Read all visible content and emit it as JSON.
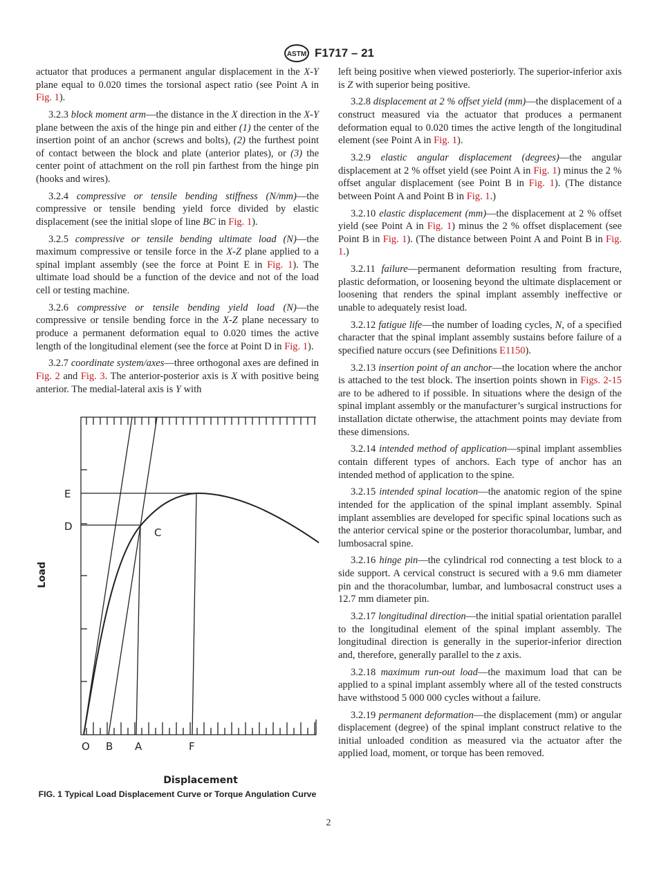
{
  "header": {
    "logo": "ASTM",
    "designation": "F1717 – 21"
  },
  "left_column": [
    {
      "cont": true,
      "segs": [
        [
          "t",
          "actuator that produces a permanent angular displacement in the "
        ],
        [
          "i",
          "X-Y"
        ],
        [
          "t",
          " plane equal to 0.020 times the torsional aspect ratio (see Point A in "
        ],
        [
          "a",
          "Fig. 1"
        ],
        [
          "t",
          ")."
        ]
      ]
    },
    {
      "segs": [
        [
          "t",
          "3.2.3 "
        ],
        [
          "i",
          "block moment arm"
        ],
        [
          "t",
          "—the distance in the "
        ],
        [
          "i",
          "X"
        ],
        [
          "t",
          " direction in the "
        ],
        [
          "i",
          "X-Y"
        ],
        [
          "t",
          " plane between the axis of the hinge pin and either "
        ],
        [
          "i",
          "(1)"
        ],
        [
          "t",
          " the center of the insertion point of an anchor (screws and bolts), "
        ],
        [
          "i",
          "(2)"
        ],
        [
          "t",
          " the furthest point of contact between the block and plate (anterior plates), or "
        ],
        [
          "i",
          "(3)"
        ],
        [
          "t",
          " the center point of attachment on the roll pin farthest from the hinge pin (hooks and wires)."
        ]
      ]
    },
    {
      "segs": [
        [
          "t",
          "3.2.4 "
        ],
        [
          "i",
          "compressive or tensile bending stiffness (N/mm)"
        ],
        [
          "t",
          "—the compressive or tensile bending yield force divided by elastic displacement (see the initial slope of line "
        ],
        [
          "i",
          "BC"
        ],
        [
          "t",
          " in "
        ],
        [
          "a",
          "Fig. 1"
        ],
        [
          "t",
          ")."
        ]
      ]
    },
    {
      "segs": [
        [
          "t",
          "3.2.5 "
        ],
        [
          "i",
          "compressive or tensile bending ultimate load (N)"
        ],
        [
          "t",
          "—the maximum compressive or tensile force in the "
        ],
        [
          "i",
          "X-Z"
        ],
        [
          "t",
          " plane applied to a spinal implant assembly (see the force at Point E in "
        ],
        [
          "a",
          "Fig. 1"
        ],
        [
          "t",
          "). The ultimate load should be a function of the device and not of the load cell or testing machine."
        ]
      ]
    },
    {
      "segs": [
        [
          "t",
          "3.2.6 "
        ],
        [
          "i",
          "compressive or tensile bending yield load (N)"
        ],
        [
          "t",
          "—the compressive or tensile bending force in the "
        ],
        [
          "i",
          "X-Z"
        ],
        [
          "t",
          " plane neces­sary to produce a permanent deformation equal to 0.020 times the active length of the longitudinal element (see the force at Point D in "
        ],
        [
          "a",
          "Fig. 1"
        ],
        [
          "t",
          ")."
        ]
      ]
    },
    {
      "segs": [
        [
          "t",
          "3.2.7 "
        ],
        [
          "i",
          "coordinate system/axes"
        ],
        [
          "t",
          "—three orthogonal axes are defined in "
        ],
        [
          "a",
          "Fig. 2"
        ],
        [
          "t",
          " and "
        ],
        [
          "a",
          "Fig. 3"
        ],
        [
          "t",
          ". The anterior-posterior axis is "
        ],
        [
          "i",
          "X"
        ],
        [
          "t",
          " with positive being anterior. The medial-lateral axis is "
        ],
        [
          "i",
          "Y"
        ],
        [
          "t",
          " with"
        ]
      ]
    }
  ],
  "right_column": [
    {
      "cont": true,
      "segs": [
        [
          "t",
          "left being positive when viewed posteriorly. The superior-inferior axis is "
        ],
        [
          "i",
          "Z"
        ],
        [
          "t",
          " with superior being positive."
        ]
      ]
    },
    {
      "segs": [
        [
          "t",
          "3.2.8 "
        ],
        [
          "i",
          "displacement at 2 % offset yield (mm)"
        ],
        [
          "t",
          "—the displace­ment of a construct measured via the actuator that produces a permanent deformation equal to 0.020 times the active length of the longitudinal element (see Point A in "
        ],
        [
          "a",
          "Fig. 1"
        ],
        [
          "t",
          ")."
        ]
      ]
    },
    {
      "segs": [
        [
          "t",
          "3.2.9 "
        ],
        [
          "i",
          "elastic angular displacement (degrees)"
        ],
        [
          "t",
          "—the angular displacement at 2 % offset yield (see Point A in "
        ],
        [
          "a",
          "Fig. 1"
        ],
        [
          "t",
          ") minus the 2 % offset angular displacement (see Point B in "
        ],
        [
          "a",
          "Fig. 1"
        ],
        [
          "t",
          "). (The distance between Point A and Point B in "
        ],
        [
          "a",
          "Fig. 1"
        ],
        [
          "t",
          ".)"
        ]
      ]
    },
    {
      "segs": [
        [
          "t",
          "3.2.10 "
        ],
        [
          "i",
          "elastic displacement (mm)"
        ],
        [
          "t",
          "—the displacement at 2 % offset yield (see Point A in "
        ],
        [
          "a",
          "Fig. 1"
        ],
        [
          "t",
          ") minus the 2 % offset displacement (see Point B in "
        ],
        [
          "a",
          "Fig. 1"
        ],
        [
          "t",
          "). (The distance between Point A and Point B in "
        ],
        [
          "a",
          "Fig. 1"
        ],
        [
          "t",
          ".)"
        ]
      ]
    },
    {
      "segs": [
        [
          "t",
          "3.2.11 "
        ],
        [
          "i",
          "failure"
        ],
        [
          "t",
          "—permanent deformation resulting from fracture, plastic deformation, or loosening beyond the ultimate displacement or loosening that renders the spinal implant assembly ineffective or unable to adequately resist load."
        ]
      ]
    },
    {
      "segs": [
        [
          "t",
          "3.2.12 "
        ],
        [
          "i",
          "fatigue life"
        ],
        [
          "t",
          "—the number of loading cycles, "
        ],
        [
          "i",
          "N"
        ],
        [
          "t",
          ", of a specified character that the spinal implant assembly sustains before failure of a specified nature occurs (see Definitions "
        ],
        [
          "a",
          "E1150"
        ],
        [
          "t",
          ")."
        ]
      ]
    },
    {
      "segs": [
        [
          "t",
          "3.2.13 "
        ],
        [
          "i",
          "insertion point of an anchor"
        ],
        [
          "t",
          "—the location where the anchor is attached to the test block. The insertion points shown in "
        ],
        [
          "a",
          "Figs. 2-15"
        ],
        [
          "t",
          " are to be adhered to if possible. In situations where the design of the spinal implant assembly or the manufacturer’s surgical instructions for installation dictate otherwise, the attachment points may deviate from these dimensions."
        ]
      ]
    },
    {
      "segs": [
        [
          "t",
          "3.2.14 "
        ],
        [
          "i",
          "intended method of application"
        ],
        [
          "t",
          "—spinal implant as­semblies contain different types of anchors. Each type of anchor has an intended method of application to the spine."
        ]
      ]
    },
    {
      "segs": [
        [
          "t",
          "3.2.15 "
        ],
        [
          "i",
          "intended spinal location"
        ],
        [
          "t",
          "—the anatomic region of the spine intended for the application of the spinal implant assembly. Spinal implant assemblies are developed for specific spinal locations such as the anterior cervical spine or the posterior thoracolumbar, lumbar, and lumbosacral spine."
        ]
      ]
    },
    {
      "segs": [
        [
          "t",
          "3.2.16 "
        ],
        [
          "i",
          "hinge pin"
        ],
        [
          "t",
          "—the cylindrical rod connecting a test block to a side support. A cervical construct is secured with a 9.6 mm diameter pin and the thoracolumbar, lumbar, and lumbosacral construct uses a 12.7 mm diameter pin."
        ]
      ]
    },
    {
      "segs": [
        [
          "t",
          "3.2.17 "
        ],
        [
          "i",
          "longitudinal direction"
        ],
        [
          "t",
          "—the initial spatial orientation parallel to the longitudinal element of the spinal implant assembly. The longitudinal direction is generally in the superior-inferior direction and, therefore, generally parallel to the "
        ],
        [
          "i",
          "z"
        ],
        [
          "t",
          " axis."
        ]
      ]
    },
    {
      "segs": [
        [
          "t",
          "3.2.18 "
        ],
        [
          "i",
          "maximum run-out load"
        ],
        [
          "t",
          "—the maximum load that can be applied to a spinal implant assembly where all of the tested constructs have withstood 5 000 000 cycles without a failure."
        ]
      ]
    },
    {
      "segs": [
        [
          "t",
          "3.2.19 "
        ],
        [
          "i",
          "permanent deformation"
        ],
        [
          "t",
          "—the displacement (mm) or angular displacement (degree) of the spinal implant construct relative to the initial unloaded condition as measured via the actuator after the applied load, moment, or torque has been removed."
        ]
      ]
    }
  ],
  "figure": {
    "y_label": "Load",
    "x_label": "Displacement",
    "y_points": {
      "E": "E",
      "D": "D"
    },
    "curve_point": "C",
    "x_points": {
      "O": "O",
      "B": "B",
      "A": "A",
      "F": "F"
    },
    "caption": "FIG. 1 Typical Load Displacement Curve or Torque Angulation Curve"
  },
  "page_number": "2",
  "colors": {
    "link": "#c4161c",
    "text": "#231f20"
  }
}
